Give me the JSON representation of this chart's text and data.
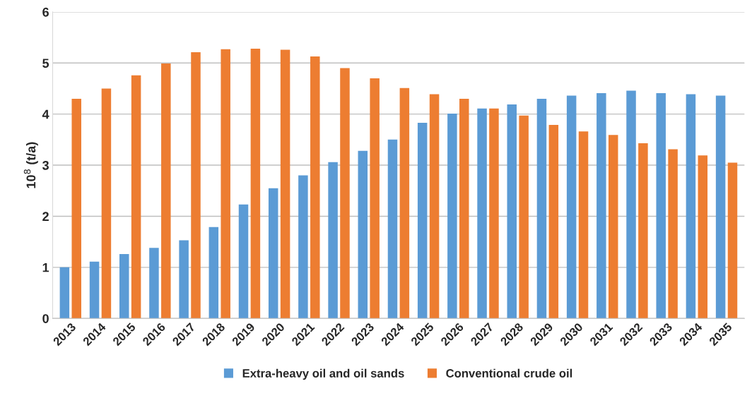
{
  "chart_data": {
    "type": "bar",
    "ylabel": "10$^{8}$ (t/a)",
    "categories": [
      "2013",
      "2014",
      "2015",
      "2016",
      "2017",
      "2018",
      "2019",
      "2020",
      "2021",
      "2022",
      "2023",
      "2024",
      "2025",
      "2026",
      "2027",
      "2028",
      "2029",
      "2030",
      "2031",
      "2032",
      "2033",
      "2034",
      "2035"
    ],
    "series": [
      {
        "name": "Extra-heavy oil and oil sands",
        "color": "#5b9bd5",
        "values": [
          1.0,
          1.11,
          1.26,
          1.38,
          1.53,
          1.79,
          2.23,
          2.55,
          2.8,
          3.06,
          3.28,
          3.5,
          3.83,
          4.01,
          4.11,
          4.19,
          4.3,
          4.36,
          4.41,
          4.46,
          4.41,
          4.39,
          4.36
        ]
      },
      {
        "name": "Conventional crude oil",
        "color": "#ed7d31",
        "values": [
          4.3,
          4.5,
          4.76,
          4.99,
          5.21,
          5.27,
          5.28,
          5.26,
          5.13,
          4.9,
          4.7,
          4.51,
          4.39,
          4.3,
          4.11,
          3.97,
          3.79,
          3.66,
          3.59,
          3.43,
          3.31,
          3.19,
          3.05
        ]
      }
    ],
    "ylim": [
      0,
      6
    ],
    "yticks": [
      0,
      1,
      2,
      3,
      4,
      5,
      6
    ],
    "grid": "y",
    "legend": "bottom"
  }
}
